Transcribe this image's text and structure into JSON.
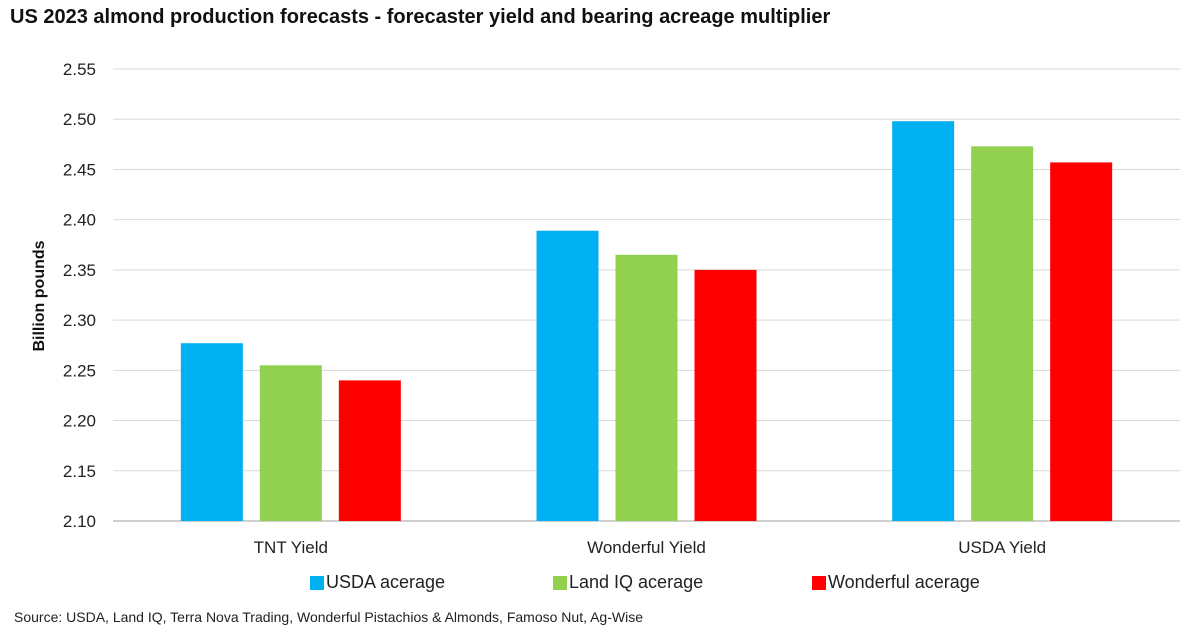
{
  "title": "US 2023 almond production forecasts - forecaster yield and bearing acreage multiplier",
  "source": "Source: USDA, Land IQ, Terra Nova Trading, Wonderful Pistachios & Almonds, Famoso Nut, Ag-Wise",
  "chart_data": {
    "type": "bar",
    "title": "US 2023 almond production forecasts - forecaster yield and bearing acreage multiplier",
    "xlabel": "",
    "ylabel": "Billion pounds",
    "ylim": [
      2.1,
      2.55
    ],
    "yticks": [
      "2.10",
      "2.15",
      "2.20",
      "2.25",
      "2.30",
      "2.35",
      "2.40",
      "2.45",
      "2.50",
      "2.55"
    ],
    "grid": true,
    "legend_position": "bottom",
    "categories": [
      "TNT Yield",
      "Wonderful Yield",
      "USDA Yield"
    ],
    "series": [
      {
        "name": "USDA acerage",
        "color": "#00b0f0",
        "values": [
          2.277,
          2.389,
          2.498
        ]
      },
      {
        "name": "Land IQ acerage",
        "color": "#92d050",
        "values": [
          2.255,
          2.365,
          2.473
        ]
      },
      {
        "name": "Wonderful acerage",
        "color": "#ff0000",
        "values": [
          2.24,
          2.35,
          2.457
        ]
      }
    ]
  }
}
